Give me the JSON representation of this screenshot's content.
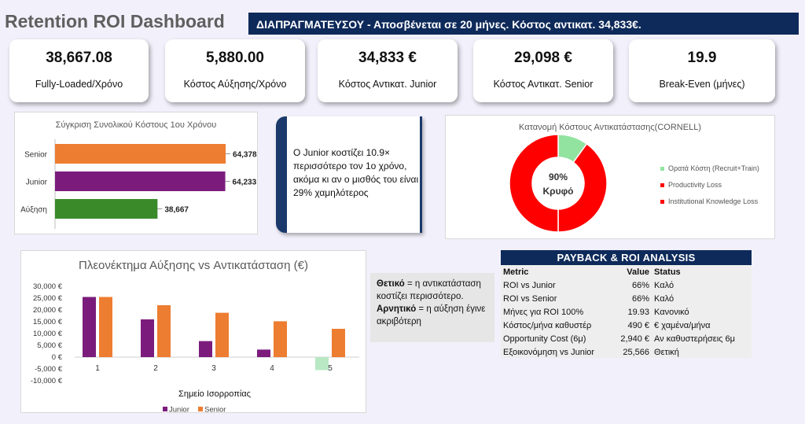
{
  "title": "Retention ROI Dashboard",
  "banner": "ΔΙΑΠΡΑΓΜΑΤΕΥΣΟΥ - Αποσβένεται σε 20 μήνες. Κόστος αντικατ. 34,833€.",
  "kpis": [
    {
      "value": "38,667.08",
      "label": "Fully-Loaded/Χρόνο"
    },
    {
      "value": "5,880.00",
      "label": "Κόστος Αύξησης/Χρόνο"
    },
    {
      "value": "34,833 €",
      "label": "Κόστος Αντικατ. Junior"
    },
    {
      "value": "29,098 €",
      "label": "Κόστος Αντικατ. Senior"
    },
    {
      "value": "19.9",
      "label": "Break-Even (μήνες)"
    }
  ],
  "note": "Ο Junior κοστίζει 10.9× περισσότερο τον 1ο χρόνο, ακόμα κι αν ο μισθός του είναι 29% χαμηλότερος",
  "legend_box": {
    "positive_term": "Θετικό",
    "positive_text": " = η αντικατάσταση κοστίζει περισσότερο.",
    "negative_term": "Αρνητικό",
    "negative_text": " = η αύξηση έγινε ακριβότερη"
  },
  "roi": {
    "title": "PAYBACK & ROI ANALYSIS",
    "headers": [
      "Metric",
      "Value",
      "Status"
    ],
    "rows": [
      [
        "ROI vs Junior",
        "66%",
        "Καλό"
      ],
      [
        "ROI vs Senior",
        "66%",
        "Καλό"
      ],
      [
        "Μήνες για ROI 100%",
        "19.93",
        "Κανονικό"
      ],
      [
        "Κόστος/μήνα καθυστέρ",
        "490 €",
        "€ χαμένα/μήνα"
      ],
      [
        "Opportunity Cost (6μ)",
        "2,940 €",
        "Αν καθυστερήσεις 6μ"
      ],
      [
        "Εξοικονόμηση vs Junior",
        "25,566",
        "Θετική"
      ]
    ]
  },
  "colors": {
    "orange": "#ed7d31",
    "purple": "#7b1c7d",
    "green": "#3a8a2a",
    "red": "#ff0000",
    "lightgreen": "#92e3a0",
    "navy": "#0e2a5a"
  },
  "chart_data": [
    {
      "type": "bar",
      "orientation": "horizontal",
      "title": "Σύγκριση Συνολικού Κόστους 1ου Χρόνου",
      "categories": [
        "Senior",
        "Junior",
        "Αύξηση"
      ],
      "values": [
        64378,
        64233,
        38667
      ],
      "value_labels": [
        "64,378",
        "64,233",
        "38,667"
      ],
      "colors": [
        "#ed7d31",
        "#7b1c7d",
        "#3a8a2a"
      ],
      "xlim": [
        0,
        70000
      ]
    },
    {
      "type": "pie",
      "title": "Κατανομή Κόστους Αντικατάστασης(CORNELL)",
      "center_label": [
        "90%",
        "Κρυφό"
      ],
      "slices": [
        {
          "label": "Ορατά Κόστη (Recruit+Train)",
          "value": 10,
          "color": "#92e3a0"
        },
        {
          "label": "Productivity Loss",
          "value": 40,
          "color": "#ff0000"
        },
        {
          "label": "Institutional Knowledge Loss",
          "value": 50,
          "color": "#ff0000"
        }
      ]
    },
    {
      "type": "bar",
      "title": "Πλεονέκτημα Αύξησης vs Αντικατάσταση (€)",
      "xlabel": "Σημείο Ισορροπίας",
      "categories": [
        "1",
        "2",
        "3",
        "4",
        "5"
      ],
      "y_ticks": [
        "30,000 €",
        "25,000 €",
        "20,000 €",
        "15,000 €",
        "10,000 €",
        "5,000 €",
        "0 €",
        "-5,000 €",
        "-10,000 €"
      ],
      "ylim": [
        -10000,
        30000
      ],
      "series": [
        {
          "name": "Junior",
          "color": "#7b1c7d",
          "values": [
            25500,
            16000,
            6800,
            3200,
            -5500
          ]
        },
        {
          "name": "Senior",
          "color": "#ed7d31",
          "values": [
            25500,
            22000,
            18800,
            15200,
            12000
          ]
        }
      ],
      "negative_color": "#b8e8c4"
    }
  ]
}
